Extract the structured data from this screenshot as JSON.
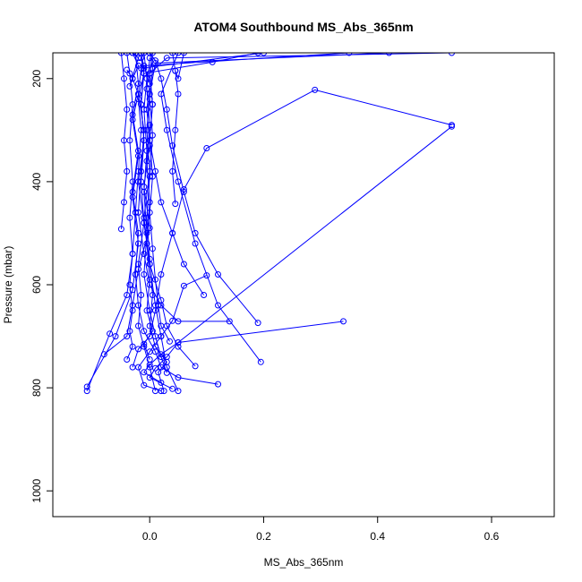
{
  "chart_data": {
    "type": "line",
    "title": "ATOM4 Southbound MS_Abs_365nm",
    "xlabel": "MS_Abs_365nm",
    "ylabel": "Pressure (mbar)",
    "xlim": [
      -0.17,
      0.71
    ],
    "ylim": [
      1050,
      150
    ],
    "y_reversed": true,
    "grid": false,
    "legend": "none",
    "series_color": "#0000ff",
    "xticks": [
      {
        "value": 0.0,
        "label": "0.0"
      },
      {
        "value": 0.2,
        "label": "0.2"
      },
      {
        "value": 0.4,
        "label": "0.4"
      },
      {
        "value": 0.6,
        "label": "0.6"
      }
    ],
    "yticks": [
      {
        "value": 200,
        "label": "200"
      },
      {
        "value": 400,
        "label": "400"
      },
      {
        "value": 600,
        "label": "600"
      },
      {
        "value": 800,
        "label": "800"
      },
      {
        "value": 1000,
        "label": "1000"
      }
    ],
    "series": [
      {
        "points": [
          [
            -0.11,
            798
          ],
          [
            -0.06,
            700
          ],
          [
            -0.03,
            610
          ],
          [
            -0.02,
            520
          ],
          [
            -0.03,
            430
          ],
          [
            -0.02,
            350
          ],
          [
            -0.03,
            280
          ],
          [
            -0.02,
            230
          ],
          [
            -0.03,
            200
          ],
          [
            -0.02,
            175
          ],
          [
            -0.03,
            150
          ]
        ]
      },
      {
        "points": [
          [
            -0.11,
            806
          ],
          [
            -0.07,
            695
          ],
          [
            -0.04,
            620
          ],
          [
            -0.03,
            540
          ],
          [
            -0.025,
            460
          ],
          [
            -0.02,
            380
          ],
          [
            -0.015,
            300
          ],
          [
            -0.02,
            240
          ],
          [
            -0.01,
            190
          ],
          [
            -0.015,
            160
          ]
        ]
      },
      {
        "points": [
          [
            -0.08,
            735
          ],
          [
            -0.04,
            700
          ],
          [
            -0.03,
            640
          ],
          [
            -0.02,
            570
          ],
          [
            0.0,
            490
          ],
          [
            -0.01,
            410
          ],
          [
            0.0,
            330
          ],
          [
            -0.005,
            260
          ],
          [
            0.0,
            210
          ],
          [
            -0.01,
            175
          ],
          [
            0.35,
            150
          ]
        ]
      },
      {
        "points": [
          [
            0.53,
            290
          ],
          [
            0.29,
            222
          ],
          [
            0.1,
            335
          ],
          [
            0.06,
            415
          ],
          [
            0.04,
            500
          ],
          [
            0.02,
            580
          ],
          [
            0.01,
            650
          ],
          [
            0.0,
            700
          ],
          [
            -0.02,
            725
          ],
          [
            -0.03,
            760
          ]
        ]
      },
      {
        "points": [
          [
            0.53,
            293
          ],
          [
            0.05,
            712
          ],
          [
            0.03,
            740
          ],
          [
            0.01,
            762
          ],
          [
            0.0,
            780
          ],
          [
            0.04,
            802
          ]
        ]
      },
      {
        "points": [
          [
            0.34,
            671
          ],
          [
            0.05,
            712
          ],
          [
            0.02,
            735
          ],
          [
            0.0,
            755
          ],
          [
            -0.01,
            770
          ],
          [
            0.02,
            790
          ]
        ]
      },
      {
        "points": [
          [
            0.19,
            674
          ],
          [
            0.12,
            580
          ],
          [
            0.08,
            500
          ],
          [
            0.06,
            420
          ],
          [
            0.04,
            330
          ],
          [
            0.03,
            260
          ],
          [
            0.02,
            200
          ],
          [
            0.01,
            165
          ],
          [
            0.0,
            150
          ]
        ]
      },
      {
        "points": [
          [
            0.14,
            671
          ],
          [
            0.05,
            671
          ],
          [
            0.02,
            640
          ],
          [
            0.0,
            600
          ],
          [
            -0.01,
            540
          ],
          [
            -0.02,
            460
          ],
          [
            -0.015,
            380
          ],
          [
            -0.01,
            300
          ],
          [
            -0.02,
            230
          ],
          [
            -0.015,
            180
          ],
          [
            0.2,
            150
          ]
        ]
      },
      {
        "points": [
          [
            0.12,
            793
          ],
          [
            0.05,
            780
          ],
          [
            0.02,
            760
          ],
          [
            0.01,
            730
          ],
          [
            -0.01,
            690
          ],
          [
            -0.02,
            640
          ],
          [
            -0.025,
            580
          ],
          [
            -0.02,
            500
          ],
          [
            -0.03,
            420
          ],
          [
            -0.02,
            340
          ],
          [
            -0.03,
            270
          ],
          [
            -0.02,
            210
          ],
          [
            -0.025,
            150
          ]
        ]
      },
      {
        "points": [
          [
            0.195,
            750
          ],
          [
            0.12,
            640
          ],
          [
            0.08,
            520
          ],
          [
            0.05,
            400
          ],
          [
            0.03,
            300
          ],
          [
            0.02,
            230
          ],
          [
            0.05,
            150
          ]
        ]
      },
      {
        "points": [
          [
            0.08,
            758
          ],
          [
            0.05,
            720
          ],
          [
            0.03,
            680
          ],
          [
            0.02,
            630
          ],
          [
            0.0,
            560
          ],
          [
            -0.01,
            480
          ],
          [
            -0.02,
            400
          ],
          [
            -0.01,
            320
          ],
          [
            -0.015,
            250
          ],
          [
            -0.01,
            190
          ],
          [
            0.11,
            168
          ],
          [
            0.19,
            150
          ]
        ]
      },
      {
        "points": [
          [
            0.1,
            582
          ],
          [
            0.06,
            602
          ],
          [
            0.04,
            670
          ],
          [
            0.02,
            700
          ],
          [
            0.0,
            730
          ],
          [
            -0.02,
            760
          ],
          [
            -0.01,
            795
          ],
          [
            0.02,
            806
          ]
        ]
      },
      {
        "points": [
          [
            0.05,
            806
          ],
          [
            0.03,
            760
          ],
          [
            0.02,
            700
          ],
          [
            0.01,
            640
          ],
          [
            0.0,
            560
          ],
          [
            -0.01,
            470
          ],
          [
            0.0,
            380
          ],
          [
            -0.005,
            300
          ],
          [
            0.0,
            230
          ],
          [
            0.01,
            170
          ],
          [
            0.42,
            150
          ]
        ]
      },
      {
        "points": [
          [
            0.01,
            806
          ],
          [
            0.0,
            760
          ],
          [
            -0.01,
            720
          ],
          [
            -0.02,
            680
          ],
          [
            -0.015,
            620
          ],
          [
            -0.02,
            560
          ],
          [
            -0.01,
            480
          ],
          [
            -0.015,
            400
          ],
          [
            -0.01,
            320
          ],
          [
            -0.015,
            250
          ],
          [
            -0.01,
            180
          ],
          [
            -0.015,
            150
          ]
        ]
      },
      {
        "points": [
          [
            0.025,
            806
          ],
          [
            0.015,
            770
          ],
          [
            0.03,
            750
          ],
          [
            0.01,
            720
          ],
          [
            0.0,
            680
          ],
          [
            0.005,
            620
          ],
          [
            0.0,
            550
          ],
          [
            -0.005,
            470
          ],
          [
            0.0,
            390
          ],
          [
            0.005,
            310
          ],
          [
            0.0,
            240
          ],
          [
            0.005,
            180
          ],
          [
            0.0,
            150
          ]
        ]
      },
      {
        "points": [
          [
            -0.04,
            745
          ],
          [
            -0.03,
            720
          ],
          [
            -0.035,
            690
          ],
          [
            -0.03,
            650
          ],
          [
            -0.035,
            600
          ],
          [
            -0.03,
            540
          ],
          [
            -0.035,
            470
          ],
          [
            -0.03,
            400
          ],
          [
            -0.035,
            320
          ],
          [
            -0.03,
            250
          ],
          [
            -0.035,
            190
          ],
          [
            -0.04,
            150
          ]
        ]
      },
      {
        "points": [
          [
            0.0,
            745
          ],
          [
            -0.01,
            715
          ],
          [
            0.005,
            690
          ],
          [
            -0.005,
            650
          ],
          [
            0.0,
            590
          ],
          [
            -0.005,
            520
          ],
          [
            0.0,
            440
          ],
          [
            -0.005,
            360
          ],
          [
            0.0,
            290
          ],
          [
            -0.005,
            220
          ],
          [
            0.0,
            160
          ]
        ]
      },
      {
        "points": [
          [
            0.035,
            710
          ],
          [
            0.02,
            680
          ],
          [
            0.015,
            640
          ],
          [
            0.01,
            590
          ],
          [
            0.005,
            530
          ],
          [
            0.0,
            460
          ],
          [
            0.005,
            390
          ],
          [
            0.0,
            320
          ],
          [
            0.005,
            250
          ],
          [
            0.0,
            190
          ],
          [
            0.03,
            160
          ],
          [
            0.53,
            150
          ]
        ]
      },
      {
        "points": [
          [
            -0.05,
            492
          ],
          [
            -0.045,
            440
          ],
          [
            -0.04,
            380
          ],
          [
            -0.045,
            320
          ],
          [
            -0.04,
            260
          ],
          [
            -0.045,
            200
          ],
          [
            -0.05,
            150
          ]
        ]
      },
      {
        "points": [
          [
            0.045,
            443
          ],
          [
            0.04,
            380
          ],
          [
            0.045,
            300
          ],
          [
            0.05,
            230
          ],
          [
            0.045,
            185
          ],
          [
            0.04,
            150
          ]
        ]
      },
      {
        "points": [
          [
            -0.04,
            183
          ],
          [
            -0.03,
            200
          ],
          [
            -0.035,
            215
          ],
          [
            -0.02,
            160
          ],
          [
            -0.03,
            150
          ]
        ]
      },
      {
        "points": [
          [
            0.045,
            185
          ],
          [
            0.05,
            200
          ],
          [
            0.06,
            150
          ]
        ]
      },
      {
        "points": [
          [
            0.095,
            620
          ],
          [
            0.06,
            560
          ],
          [
            0.04,
            500
          ],
          [
            0.02,
            440
          ],
          [
            0.01,
            380
          ],
          [
            0.0,
            320
          ],
          [
            0.005,
            250
          ],
          [
            0.0,
            190
          ],
          [
            0.005,
            150
          ]
        ]
      },
      {
        "points": [
          [
            0.03,
            771
          ],
          [
            0.02,
            740
          ],
          [
            0.01,
            700
          ],
          [
            0.0,
            650
          ],
          [
            -0.01,
            580
          ],
          [
            -0.005,
            500
          ],
          [
            -0.01,
            420
          ],
          [
            -0.005,
            340
          ],
          [
            -0.01,
            260
          ],
          [
            -0.005,
            200
          ],
          [
            -0.01,
            150
          ]
        ]
      }
    ]
  }
}
